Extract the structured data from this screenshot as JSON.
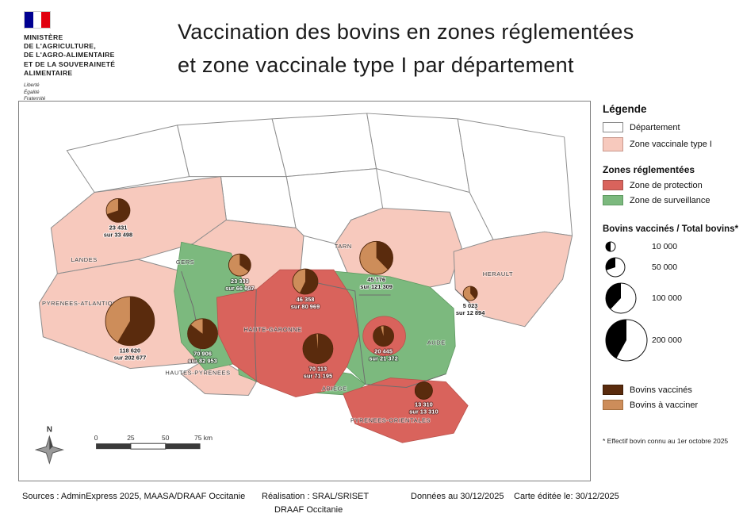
{
  "logo": {
    "ministry_lines": [
      "MINISTÈRE",
      "DE L'AGRICULTURE,",
      "DE L'AGRO-ALIMENTAIRE",
      "ET DE LA SOUVERAINETÉ",
      "ALIMENTAIRE"
    ],
    "motto_lines": [
      "Liberté",
      "Égalité",
      "Fraternité"
    ]
  },
  "title": {
    "line1": "Vaccination  des bovins en zones réglementées",
    "line2": "et zone vaccinale type I par département"
  },
  "colors": {
    "departement": "#ffffff",
    "zone_vaccinale": "#f7c9bd",
    "zone_protection": "#d9635c",
    "zone_surveillance": "#7cb97e",
    "bovins_vaccines": "#5a2b0d",
    "bovins_a_vacciner": "#cd8d5a"
  },
  "legend": {
    "title": "Légende",
    "departement_label": "Département",
    "zone_vaccinale_label": "Zone vaccinale type I",
    "zones_reglementees_title": "Zones réglementées",
    "zone_protection_label": "Zone de protection",
    "zone_surveillance_label": "Zone de surveillance",
    "pie_scale_title": "Bovins vaccinés / Total bovins*",
    "size_labels": [
      "10 000",
      "50 000",
      "100 000",
      "200 000"
    ],
    "bovins_vaccines_label": "Bovins vaccinés",
    "bovins_a_vacciner_label": "Bovins à vacciner",
    "footnote": "* Effectif bovin connu au 1er octobre 2025"
  },
  "map": {
    "department_labels": {
      "landes": "LANDES",
      "gers": "GERS",
      "tarn": "TARN",
      "herault": "HERAULT",
      "pyrenees_atlantiques": "PYRENEES-ATLANTIQUES",
      "hautes_pyrenees": "HAUTES-PYRENEES",
      "haute_garonne": "HAUTE-GARONNE",
      "aude": "AUDE",
      "ariege": "ARIEGE",
      "pyrenees_orientales": "PYRENEES-ORIENTALES"
    },
    "pies": [
      {
        "dept": "landes",
        "line1": "23 431",
        "line2": "sur 33 498",
        "vaccines": 23431,
        "total": 33498
      },
      {
        "dept": "gers",
        "line1": "23 333",
        "line2": "sur 66 607",
        "vaccines": 23333,
        "total": 66607
      },
      {
        "dept": "haute_garonne",
        "line1": "46 358",
        "line2": "sur 80 969",
        "vaccines": 46358,
        "total": 80969
      },
      {
        "dept": "tarn",
        "line1": "45 776",
        "line2": "sur 121 309",
        "vaccines": 45776,
        "total": 121309
      },
      {
        "dept": "herault",
        "line1": "5 023",
        "line2": "sur 12 894",
        "vaccines": 5023,
        "total": 12894
      },
      {
        "dept": "pyrenees_atlantiques",
        "line1": "118 620",
        "line2": "sur 202 677",
        "vaccines": 118620,
        "total": 202677
      },
      {
        "dept": "hautes_pyrenees",
        "line1": "70 906",
        "line2": "sur 82 953",
        "vaccines": 70906,
        "total": 82953
      },
      {
        "dept": "ariege",
        "line1": "70 113",
        "line2": "sur 71 195",
        "vaccines": 70113,
        "total": 71195
      },
      {
        "dept": "aude",
        "line1": "20 445",
        "line2": "sur 21 372",
        "vaccines": 20445,
        "total": 21372
      },
      {
        "dept": "pyrenees_orientales",
        "line1": "13 310",
        "line2": "sur 13 310",
        "vaccines": 13310,
        "total": 13310
      }
    ]
  },
  "compass": {
    "label": "N"
  },
  "scale_bar": {
    "ticks": [
      "0",
      "25",
      "50",
      "75 km"
    ]
  },
  "footer": {
    "sources": "Sources : AdminExpress 2025, MAASA/DRAAF Occitanie",
    "realisation_line1": "Réalisation : SRAL/SRISET",
    "realisation_line2": "DRAAF Occitanie",
    "donnees": "Données au 30/12/2025",
    "carte_editee": "Carte éditée le:  30/12/2025"
  }
}
